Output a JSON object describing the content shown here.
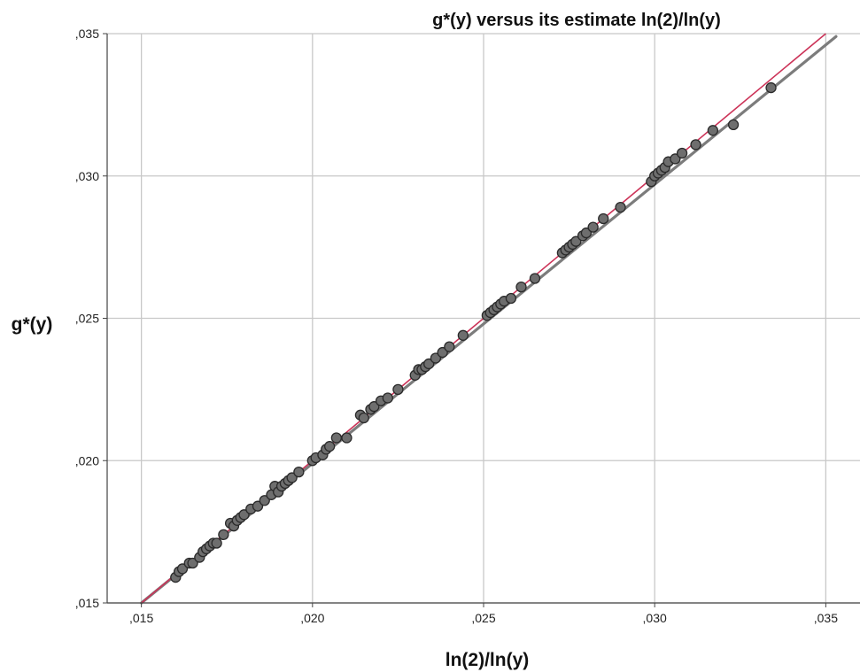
{
  "chart_data": {
    "type": "scatter",
    "title": "g*(y) versus its estimate ln(2)/ln(y)",
    "xlabel": "ln(2)/ln(y)",
    "ylabel": "g*(y)",
    "xlim": [
      0.014,
      0.036
    ],
    "ylim": [
      0.015,
      0.035
    ],
    "x_ticks": [
      0.015,
      0.02,
      0.025,
      0.03,
      0.035
    ],
    "x_tick_labels": [
      ",015",
      ",020",
      ",025",
      ",030",
      ",035"
    ],
    "y_ticks": [
      0.015,
      0.02,
      0.025,
      0.03,
      0.035
    ],
    "y_tick_labels": [
      ",015",
      ",020",
      ",025",
      ",030",
      ",035"
    ],
    "grid": true,
    "colors": {
      "points_fill": "#6e6e6e",
      "points_stroke": "#2a2a2a",
      "fit_line": "#7c7c7c",
      "reference_line": "#cc3358",
      "grid": "#c8c8c8",
      "axis": "#444444"
    },
    "series": [
      {
        "x": [
          0.016,
          0.0161,
          0.0162,
          0.0164,
          0.0165,
          0.0167,
          0.0168,
          0.0169,
          0.017,
          0.0171,
          0.0172,
          0.0174,
          0.0176,
          0.0177,
          0.0178,
          0.0179,
          0.018,
          0.0182,
          0.0184,
          0.0186,
          0.0188,
          0.0189,
          0.019,
          0.0191,
          0.0192,
          0.0193,
          0.0194,
          0.0196,
          0.02,
          0.0201,
          0.0203,
          0.0204,
          0.0205,
          0.0207,
          0.021,
          0.0214,
          0.0215,
          0.0217,
          0.0218,
          0.022,
          0.0222,
          0.0225,
          0.023,
          0.0231,
          0.0232,
          0.0233,
          0.0234,
          0.0236,
          0.0238,
          0.024,
          0.0244,
          0.0251,
          0.0252,
          0.0253,
          0.0254,
          0.0255,
          0.0256,
          0.0258,
          0.0261,
          0.0265,
          0.0273,
          0.0274,
          0.0275,
          0.0276,
          0.0277,
          0.0279,
          0.028,
          0.0282,
          0.0285,
          0.029,
          0.0299,
          0.03,
          0.0301,
          0.0302,
          0.0303,
          0.0304,
          0.0306,
          0.0308,
          0.0312,
          0.0317,
          0.0323,
          0.0334
        ],
        "y": [
          0.0159,
          0.0161,
          0.0162,
          0.0164,
          0.0164,
          0.0166,
          0.0168,
          0.0169,
          0.017,
          0.0171,
          0.0171,
          0.0174,
          0.0178,
          0.0177,
          0.0179,
          0.018,
          0.0181,
          0.0183,
          0.0184,
          0.0186,
          0.0188,
          0.0191,
          0.0189,
          0.0191,
          0.0192,
          0.0193,
          0.0194,
          0.0196,
          0.02,
          0.0201,
          0.0202,
          0.0204,
          0.0205,
          0.0208,
          0.0208,
          0.0216,
          0.0215,
          0.0218,
          0.0219,
          0.0221,
          0.0222,
          0.0225,
          0.023,
          0.0232,
          0.0232,
          0.0233,
          0.0234,
          0.0236,
          0.0238,
          0.024,
          0.0244,
          0.0251,
          0.0252,
          0.0253,
          0.0254,
          0.0255,
          0.0256,
          0.0257,
          0.0261,
          0.0264,
          0.0273,
          0.0274,
          0.0275,
          0.0276,
          0.0277,
          0.0279,
          0.028,
          0.0282,
          0.0285,
          0.0289,
          0.0298,
          0.03,
          0.0301,
          0.0302,
          0.0303,
          0.0305,
          0.0306,
          0.0308,
          0.0311,
          0.0316,
          0.0318,
          0.0331
        ]
      }
    ],
    "fit_line": {
      "x": [
        0.015,
        0.0353
      ],
      "y": [
        0.015,
        0.0349
      ]
    },
    "reference_line": {
      "x": [
        0.015,
        0.035
      ],
      "y": [
        0.015,
        0.035
      ]
    }
  }
}
